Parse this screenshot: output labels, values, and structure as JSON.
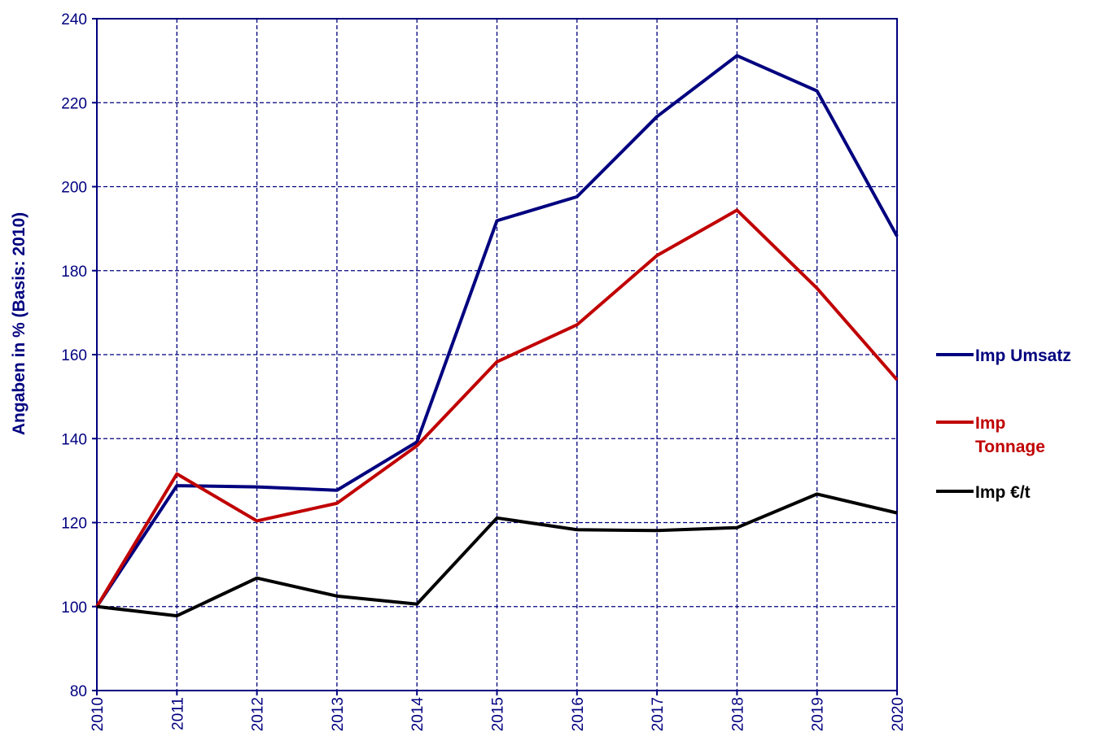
{
  "colors": {
    "axis": "#00007f",
    "grid": "#00007f",
    "imp_umsatz": "#00007f",
    "imp_tonnage": "#c00000",
    "imp_eur_t": "#000000"
  },
  "chart_data": {
    "type": "line",
    "ylabel": "Angaben in % (Basis: 2010)",
    "xlabel": "",
    "categories": [
      "2010",
      "2011",
      "2012",
      "2013",
      "2014",
      "2015",
      "2016",
      "2017",
      "2018",
      "2019",
      "2020"
    ],
    "ylim": [
      80,
      240
    ],
    "yticks": [
      80,
      100,
      120,
      140,
      160,
      180,
      200,
      220,
      240
    ],
    "grid": true,
    "legend_position": "right",
    "series": [
      {
        "name": "Imp Umsatz",
        "legend_lines": [
          "Imp Umsatz"
        ],
        "color_key": "imp_umsatz",
        "values": [
          100,
          128.8,
          128.5,
          127.7,
          139.2,
          191.9,
          197.6,
          216.7,
          231.2,
          222.8,
          188.2
        ]
      },
      {
        "name": "Imp Tonnage",
        "legend_lines": [
          "Imp",
          "Tonnage"
        ],
        "color_key": "imp_tonnage",
        "values": [
          100,
          131.6,
          120.4,
          124.6,
          138.3,
          158.3,
          167.1,
          183.6,
          194.4,
          175.8,
          154.0
        ]
      },
      {
        "name": "Imp €/t",
        "legend_lines": [
          "Imp €/t"
        ],
        "color_key": "imp_eur_t",
        "values": [
          100,
          97.8,
          106.8,
          102.5,
          100.6,
          121.1,
          118.3,
          118.1,
          118.8,
          126.8,
          122.3
        ]
      }
    ]
  }
}
